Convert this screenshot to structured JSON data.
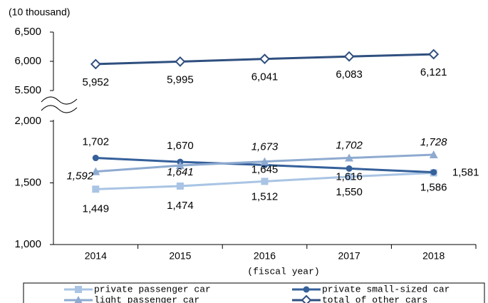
{
  "chart_data": {
    "type": "line",
    "y_unit": "(10 thousand)",
    "x_label": "(fiscal year)",
    "categories": [
      "2014",
      "2015",
      "2016",
      "2017",
      "2018"
    ],
    "ylim": [
      1000,
      2000
    ],
    "yticks": [
      {
        "value": 1000,
        "label": "1,000"
      },
      {
        "value": 1500,
        "label": "1,500"
      },
      {
        "value": 2000,
        "label": "2,000"
      }
    ],
    "y2lim": [
      5500,
      6500
    ],
    "y2ticks": [
      {
        "value": 5500,
        "label": "5.500"
      },
      {
        "value": 6000,
        "label": "6,000"
      },
      {
        "value": 6500,
        "label": "6,500"
      }
    ],
    "series": [
      {
        "name": "private passenger car",
        "color": "#a9c4e4",
        "marker": "square",
        "values": [
          1449,
          1474,
          1512,
          1550,
          1581
        ],
        "value_labels": [
          "1,449",
          "1,474",
          "1,512",
          "1,550",
          "1,581"
        ]
      },
      {
        "name": "private small-sized car",
        "color": "#35609a",
        "marker": "circle",
        "values": [
          1702,
          1670,
          1645,
          1616,
          1586
        ],
        "value_labels": [
          "1,702",
          "1,670",
          "1,645",
          "1,616",
          "1,586"
        ]
      },
      {
        "name": "light passenger car",
        "color": "#8eaad0",
        "marker": "triangle",
        "values": [
          1592,
          1641,
          1673,
          1702,
          1728
        ],
        "value_labels": [
          "1,592",
          "1,641",
          "1,673",
          "1,702",
          "1,728"
        ]
      },
      {
        "name": "total of other cars",
        "color": "#2f4f7f",
        "marker": "diamond",
        "axis": "y2",
        "values": [
          5952,
          5995,
          6041,
          6083,
          6121
        ],
        "value_labels": [
          "5,952",
          "5,995",
          "6,041",
          "6,083",
          "6,121"
        ]
      }
    ]
  }
}
